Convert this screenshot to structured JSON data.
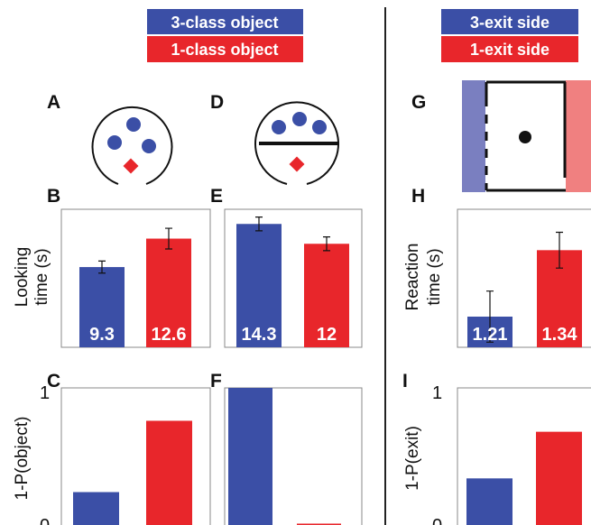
{
  "colors": {
    "blue": "#3b4fa6",
    "red": "#e8262b",
    "light_blue": "#7a7fc0",
    "light_red": "#f08080"
  },
  "legend_left": [
    {
      "label": "3-class object",
      "color": "#3b4fa6"
    },
    {
      "label": "1-class object",
      "color": "#e8262b"
    }
  ],
  "legend_right": [
    {
      "label": "3-exit side",
      "color": "#3b4fa6"
    },
    {
      "label": "1-exit side",
      "color": "#e8262b"
    }
  ],
  "panel_labels": {
    "A": "A",
    "B": "B",
    "C": "C",
    "D": "D",
    "E": "E",
    "F": "F",
    "G": "G",
    "H": "H",
    "I": "I"
  },
  "y_labels": {
    "looking_line1": "Looking",
    "looking_line2": "time (s)",
    "reaction_line1": "Reaction",
    "reaction_line2": "time (s)",
    "p_object": "1-P(object)",
    "p_exit": "1-P(exit)"
  },
  "chart_data": [
    {
      "panel": "B",
      "type": "bar",
      "categories": [
        "3-class object",
        "1-class object"
      ],
      "values": [
        9.3,
        12.6
      ],
      "value_labels": [
        "9.3",
        "12.6"
      ],
      "errors": [
        0.7,
        1.2
      ],
      "ylim": [
        0,
        16
      ]
    },
    {
      "panel": "E",
      "type": "bar",
      "categories": [
        "3-class object",
        "1-class object"
      ],
      "values": [
        14.3,
        12
      ],
      "value_labels": [
        "14.3",
        "12"
      ],
      "errors": [
        0.8,
        0.8
      ],
      "ylim": [
        0,
        16
      ]
    },
    {
      "panel": "H",
      "type": "bar",
      "categories": [
        "3-exit side",
        "1-exit side"
      ],
      "values": [
        1.21,
        1.34
      ],
      "value_labels": [
        "1.21",
        "1.34"
      ],
      "errors": [
        0.05,
        0.035
      ],
      "ylim": [
        1.15,
        1.42
      ]
    },
    {
      "panel": "C",
      "type": "bar",
      "categories": [
        "3-class object",
        "1-class object"
      ],
      "values": [
        0.24,
        0.76
      ],
      "ylim": [
        0,
        1
      ],
      "yticks": [
        "1",
        "0"
      ]
    },
    {
      "panel": "F",
      "type": "bar",
      "categories": [
        "3-class object",
        "1-class object"
      ],
      "values": [
        1.0,
        0.01
      ],
      "ylim": [
        0,
        1
      ]
    },
    {
      "panel": "I",
      "type": "bar",
      "categories": [
        "3-exit side",
        "1-exit side"
      ],
      "values": [
        0.34,
        0.68
      ],
      "ylim": [
        0,
        1
      ],
      "yticks": [
        "1",
        "0"
      ]
    }
  ]
}
